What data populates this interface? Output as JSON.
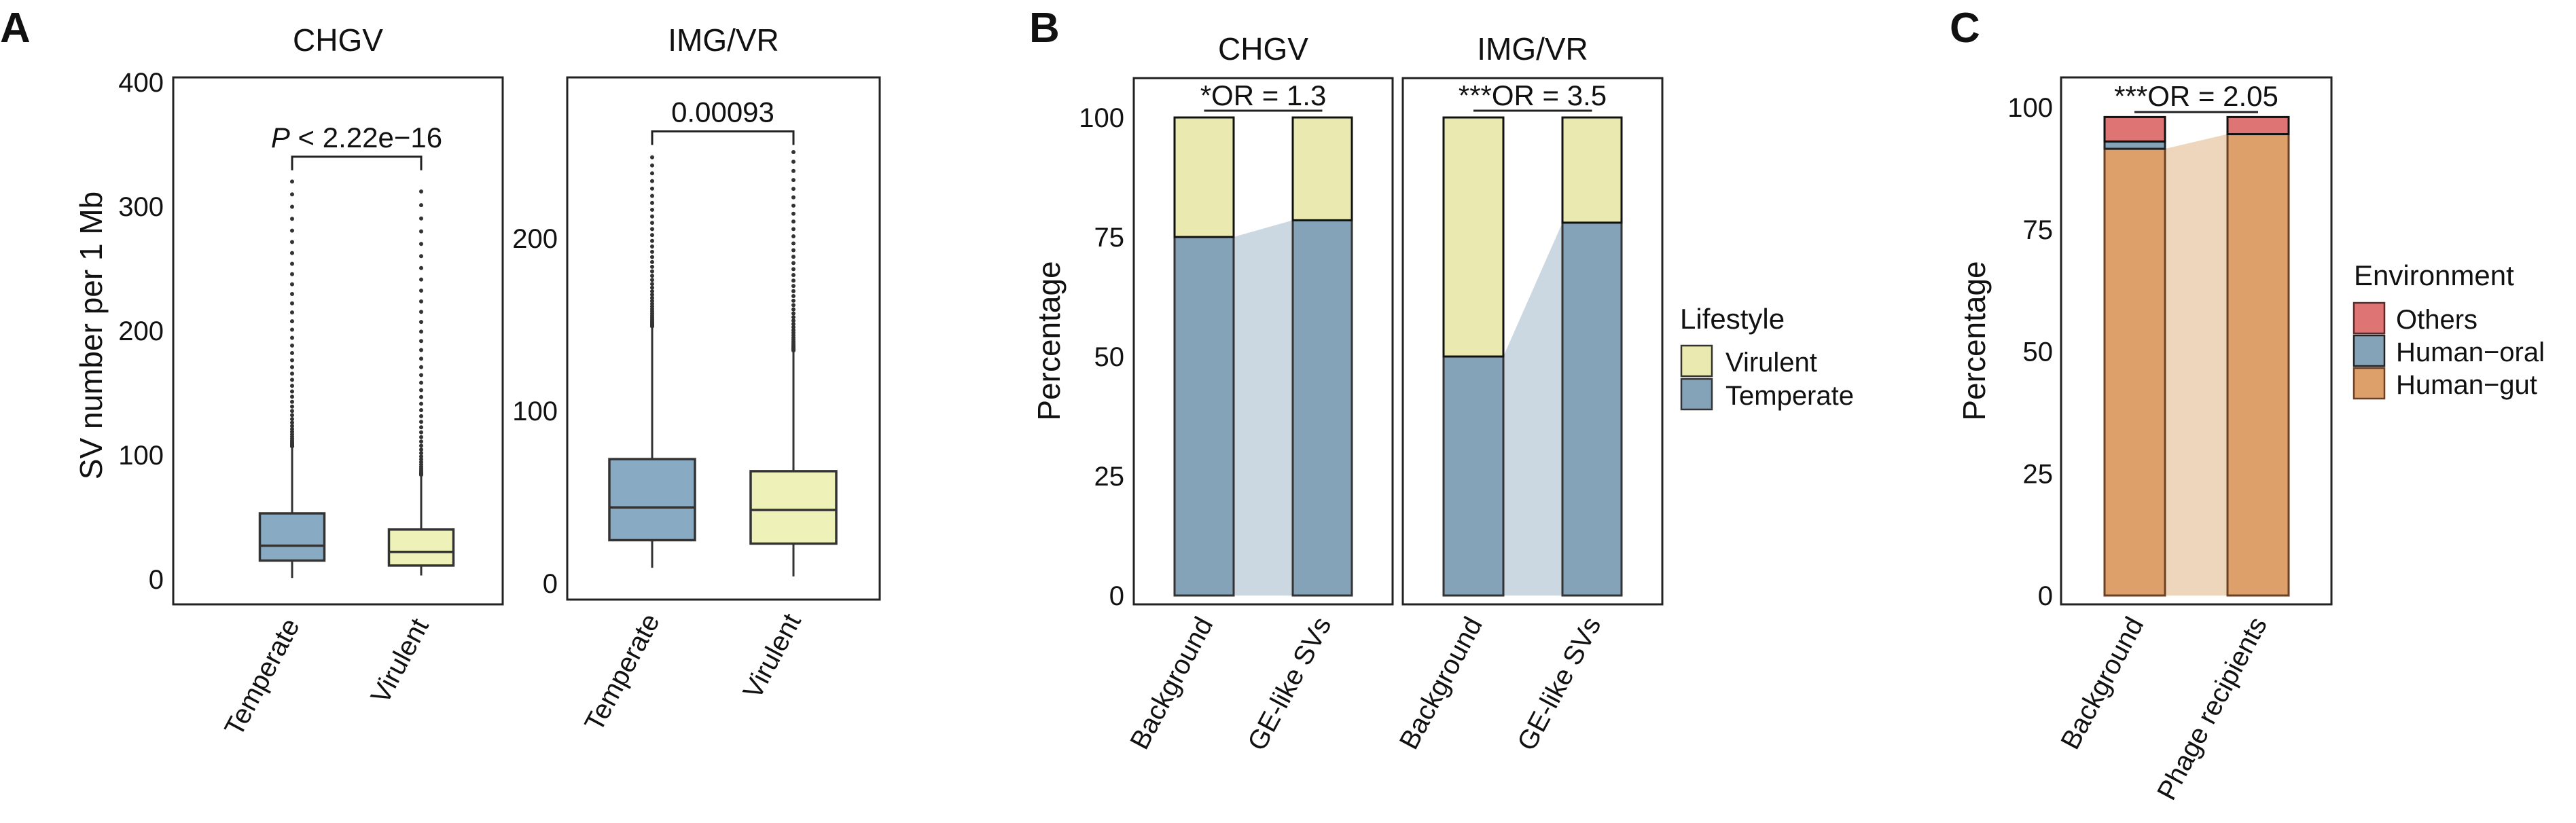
{
  "figure": {
    "panels": [
      {
        "letter": "A"
      },
      {
        "letter": "B"
      },
      {
        "letter": "C"
      }
    ]
  },
  "colors": {
    "temperate": "#88abc3",
    "virulent": "#eef2b8",
    "bar_temperate": "#84a2b8",
    "bar_virulent": "#eaeab0",
    "temperate_link": "#cbd8e2",
    "others": "#de7474",
    "human_oral": "#84a2b8",
    "human_gut": "#dda06a",
    "gut_link": "#eed6bd",
    "outlier": "#333333"
  },
  "chart_data": [
    {
      "id": "A",
      "type": "boxplot",
      "panel_letter": "A",
      "ylabel": "SV number per 1 Mb",
      "facets": [
        {
          "title": "CHGV",
          "ylim": [
            -15,
            410
          ],
          "yticks": [
            0,
            100,
            200,
            300,
            400
          ],
          "categories": [
            "Temperate",
            "Virulent"
          ],
          "boxes": [
            {
              "name": "Temperate",
              "whisker_low": 1,
              "q1": 15,
              "median": 27,
              "q3": 53,
              "whisker_high": 107,
              "outlier_max": 320
            },
            {
              "name": "Virulent",
              "whisker_low": 3,
              "q1": 11,
              "median": 22,
              "q3": 40,
              "whisker_high": 84,
              "outlier_max": 312
            }
          ],
          "comparison": {
            "label_prefix": "P",
            "label": "< 2.22e−16",
            "y": 340
          }
        },
        {
          "title": "IMG/VR",
          "ylim": [
            -10,
            295
          ],
          "yticks": [
            0,
            100,
            200
          ],
          "categories": [
            "Temperate",
            "Virulent"
          ],
          "boxes": [
            {
              "name": "Temperate",
              "whisker_low": 9,
              "q1": 25,
              "median": 44,
              "q3": 72,
              "whisker_high": 149,
              "outlier_max": 247
            },
            {
              "name": "Virulent",
              "whisker_low": 4,
              "q1": 23,
              "median": 42.5,
              "q3": 65,
              "whisker_high": 135,
              "outlier_max": 250
            }
          ],
          "comparison": {
            "label_prefix": "",
            "label": "0.00093",
            "y": 262
          }
        }
      ]
    },
    {
      "id": "B",
      "type": "bar",
      "stacked": true,
      "panel_letter": "B",
      "ylabel": "Percentage",
      "ylim": [
        0,
        100
      ],
      "yticks": [
        0,
        25,
        50,
        75,
        100
      ],
      "legend": {
        "title": "Lifestyle",
        "position": "right",
        "entries": [
          "Virulent",
          "Temperate"
        ]
      },
      "facets": [
        {
          "title": "CHGV",
          "annotation": {
            "stars": "*",
            "text": "OR = 1.3"
          },
          "categories": [
            "Background",
            "GE-like SVs"
          ],
          "series": [
            {
              "name": "Temperate",
              "values": [
                75,
                78.5
              ]
            },
            {
              "name": "Virulent",
              "values": [
                25,
                21.5
              ]
            }
          ]
        },
        {
          "title": "IMG/VR",
          "annotation": {
            "stars": "***",
            "text": "OR = 3.5"
          },
          "categories": [
            "Background",
            "GE-like SVs"
          ],
          "series": [
            {
              "name": "Temperate",
              "values": [
                50,
                78
              ]
            },
            {
              "name": "Virulent",
              "values": [
                50,
                22
              ]
            }
          ]
        }
      ]
    },
    {
      "id": "C",
      "type": "bar",
      "stacked": true,
      "panel_letter": "C",
      "ylabel": "Percentage",
      "ylim": [
        0,
        100
      ],
      "yticks": [
        0,
        25,
        50,
        75,
        100
      ],
      "legend": {
        "title": "Environment",
        "position": "right",
        "entries": [
          "Others",
          "Human−oral",
          "Human−gut"
        ]
      },
      "annotation": {
        "stars": "***",
        "text": "OR = 2.05"
      },
      "categories": [
        "Background",
        "Phage recipients"
      ],
      "series": [
        {
          "name": "Human−gut",
          "values": [
            91.5,
            94.5
          ]
        },
        {
          "name": "Human−oral",
          "values": [
            1.5,
            0
          ]
        },
        {
          "name": "Others",
          "values": [
            5,
            3.5
          ]
        }
      ]
    }
  ]
}
